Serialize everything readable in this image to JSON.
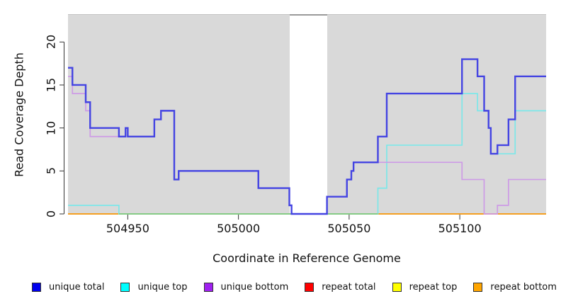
{
  "figure": {
    "background": "#ffffff",
    "plot_background": "#d9d9d9"
  },
  "chart_data": {
    "type": "line",
    "subtype": "step",
    "title": "",
    "xlabel": "Coordinate in Reference Genome",
    "ylabel": "Read Coverage Depth",
    "xlim": [
      504923,
      505139
    ],
    "ylim": [
      0,
      23.2
    ],
    "x_ticks": [
      "504950",
      "505000",
      "505050",
      "505100"
    ],
    "x_tick_values": [
      504950,
      505000,
      505050,
      505100
    ],
    "y_ticks": [
      "0",
      "5",
      "10",
      "15",
      "20"
    ],
    "y_tick_values": [
      0,
      5,
      10,
      15,
      20
    ],
    "grid": false,
    "legend_position": "bottom",
    "masked_region": {
      "x_start": 505023,
      "x_end": 505040,
      "color": "#ffffff",
      "top_edge_color": "#9a9a9a"
    },
    "zero_line_blend_segment": {
      "x_start": 504946,
      "x_end": 505063,
      "y": 0,
      "color": "#85cb85",
      "note": "green blend where unique-top and repeat lines overlap at depth 0"
    },
    "series": [
      {
        "name": "unique total",
        "legend_color": "#0000ee",
        "line_color": "#4444e2",
        "line_width": 2.4,
        "steps": [
          [
            504923,
            17
          ],
          [
            504925,
            15
          ],
          [
            504931,
            13
          ],
          [
            504933,
            10
          ],
          [
            504946,
            9
          ],
          [
            504949,
            10
          ],
          [
            504950,
            9
          ],
          [
            504962,
            11
          ],
          [
            504965,
            12
          ],
          [
            504971,
            4
          ],
          [
            504973,
            5
          ],
          [
            505009,
            3
          ],
          [
            505023,
            1
          ],
          [
            505024,
            0
          ],
          [
            505040,
            2
          ],
          [
            505049,
            4
          ],
          [
            505051,
            5
          ],
          [
            505052,
            6
          ],
          [
            505063,
            9
          ],
          [
            505067,
            14
          ],
          [
            505101,
            18
          ],
          [
            505108,
            16
          ],
          [
            505111,
            12
          ],
          [
            505113,
            10
          ],
          [
            505114,
            7
          ],
          [
            505117,
            8
          ],
          [
            505122,
            11
          ],
          [
            505125,
            16
          ],
          [
            505139,
            16
          ]
        ]
      },
      {
        "name": "unique top",
        "legend_color": "#00ffff",
        "line_color": "#7de7e9",
        "line_width": 1.7,
        "steps": [
          [
            504923,
            1
          ],
          [
            504946,
            0
          ],
          [
            505063,
            3
          ],
          [
            505067,
            8
          ],
          [
            505101,
            14
          ],
          [
            505108,
            12
          ],
          [
            505113,
            10
          ],
          [
            505114,
            7
          ],
          [
            505125,
            12
          ],
          [
            505139,
            12
          ]
        ]
      },
      {
        "name": "unique bottom",
        "legend_color": "#a020f0",
        "line_color": "#cd9be6",
        "line_width": 1.7,
        "steps": [
          [
            504923,
            16
          ],
          [
            504925,
            14
          ],
          [
            504931,
            12
          ],
          [
            504933,
            9
          ],
          [
            504949,
            10
          ],
          [
            504950,
            9
          ],
          [
            504962,
            11
          ],
          [
            504965,
            12
          ],
          [
            504971,
            4
          ],
          [
            504973,
            5
          ],
          [
            505009,
            3
          ],
          [
            505023,
            1
          ],
          [
            505024,
            0
          ],
          [
            505040,
            2
          ],
          [
            505049,
            4
          ],
          [
            505051,
            5
          ],
          [
            505052,
            6
          ],
          [
            505101,
            4
          ],
          [
            505111,
            0
          ],
          [
            505117,
            1
          ],
          [
            505122,
            4
          ],
          [
            505139,
            4
          ]
        ]
      },
      {
        "name": "repeat total",
        "legend_color": "#ff0000",
        "line_color": "#e05050",
        "line_width": 1.7,
        "steps": [
          [
            504923,
            0
          ],
          [
            505139,
            0
          ]
        ]
      },
      {
        "name": "repeat top",
        "legend_color": "#ffff00",
        "line_color": "#e8e060",
        "line_width": 1.7,
        "steps": [
          [
            504923,
            0
          ],
          [
            505139,
            0
          ]
        ]
      },
      {
        "name": "repeat bottom",
        "legend_color": "#ffa500",
        "line_color": "#f49f22",
        "line_width": 2.0,
        "steps": [
          [
            504923,
            0
          ],
          [
            505139,
            0
          ]
        ]
      }
    ]
  }
}
